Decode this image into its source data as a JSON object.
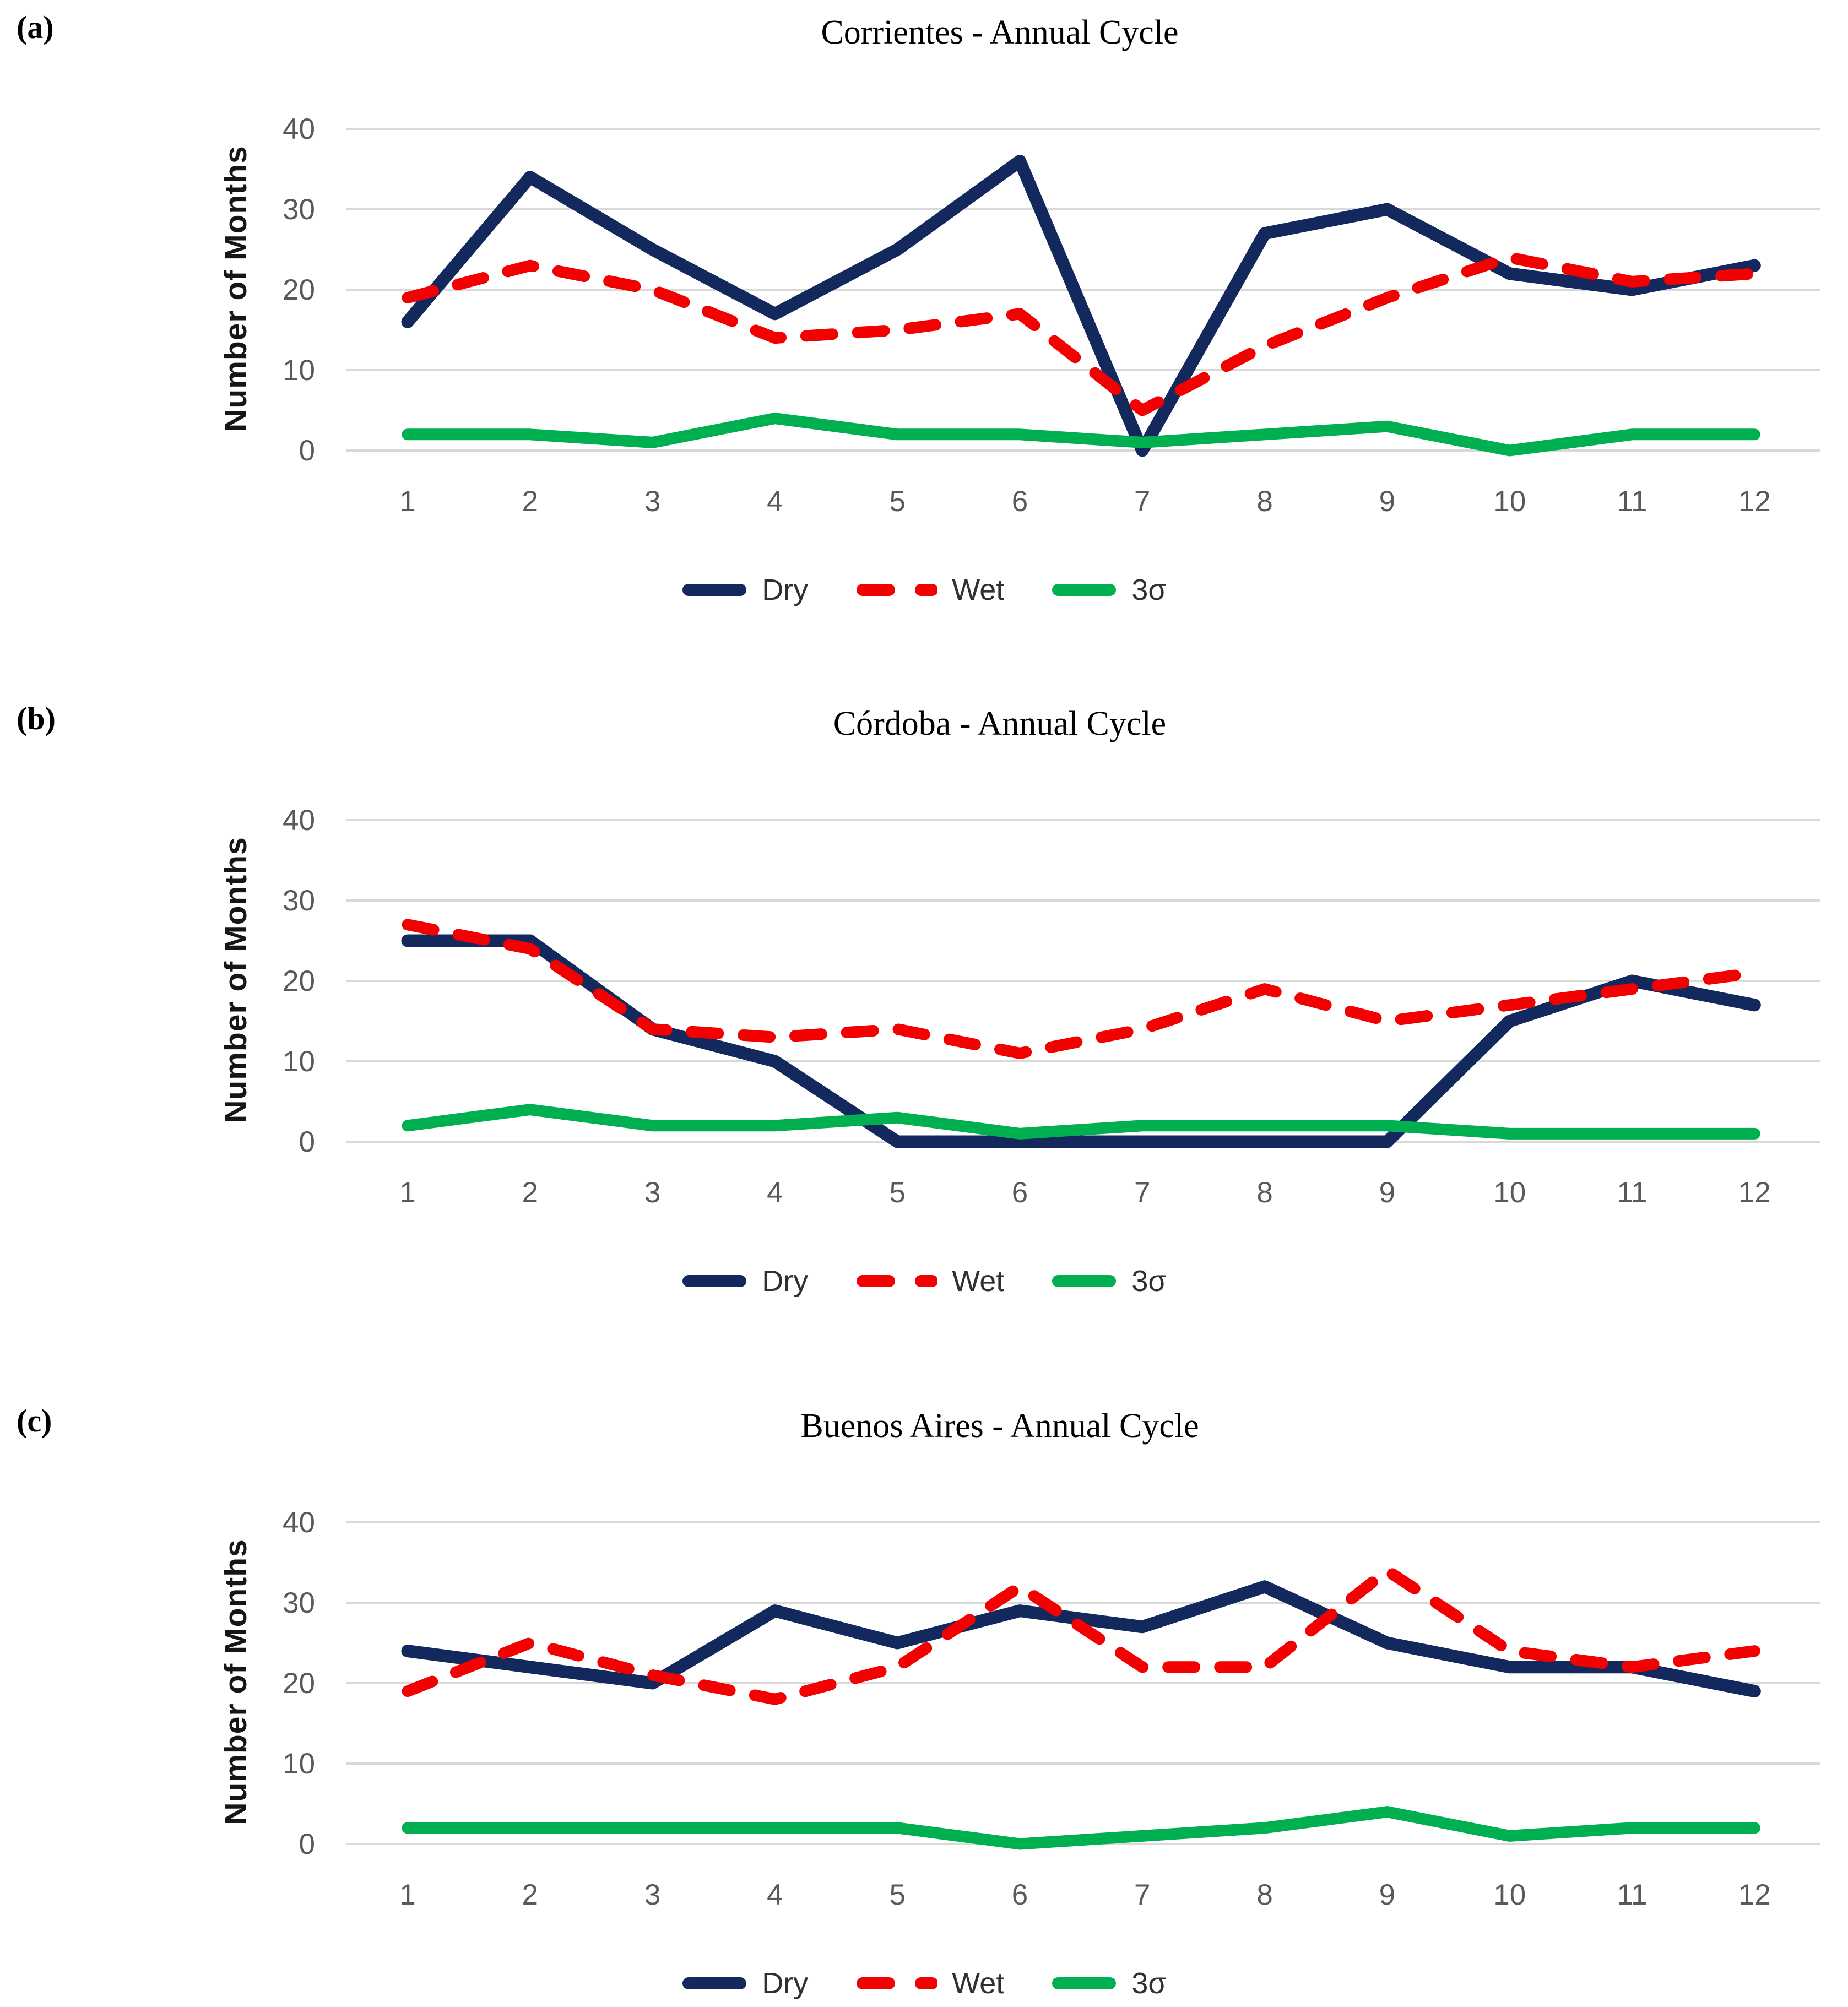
{
  "figure": {
    "ylabel": "Number of Months",
    "accent_colors": {
      "dry": "#13295E",
      "wet": "#F30000",
      "sigma": "#00B050",
      "gridline": "#D9D9D9",
      "tick_text": "#595959"
    }
  },
  "chart_data": [
    {
      "type": "line",
      "panel_label": "(a)",
      "title": "Corrientes - Annual Cycle",
      "xlabel": "",
      "ylabel": "Number of Months",
      "ylim": [
        0,
        40
      ],
      "yticks": [
        0,
        10,
        20,
        30,
        40
      ],
      "categories": [
        1,
        2,
        3,
        4,
        5,
        6,
        7,
        8,
        9,
        10,
        11,
        12
      ],
      "grid": true,
      "legend_position": "bottom",
      "series": [
        {
          "name": "Dry",
          "key": "dry",
          "color": "#13295E",
          "style": "solid",
          "values": [
            16,
            34,
            25,
            17,
            25,
            36,
            0,
            27,
            30,
            22,
            20,
            23
          ]
        },
        {
          "name": "Wet",
          "key": "wet",
          "color": "#F30000",
          "style": "dashed",
          "values": [
            19,
            23,
            20,
            14,
            15,
            17,
            5,
            13,
            19,
            24,
            21,
            22
          ]
        },
        {
          "name": "3σ",
          "key": "sigma",
          "color": "#00B050",
          "style": "solid",
          "values": [
            2,
            2,
            1,
            4,
            2,
            2,
            1,
            2,
            3,
            0,
            2,
            2
          ]
        }
      ]
    },
    {
      "type": "line",
      "panel_label": "(b)",
      "title": "Córdoba - Annual Cycle",
      "xlabel": "",
      "ylabel": "Number of Months",
      "ylim": [
        0,
        40
      ],
      "yticks": [
        0,
        10,
        20,
        30,
        40
      ],
      "categories": [
        1,
        2,
        3,
        4,
        5,
        6,
        7,
        8,
        9,
        10,
        11,
        12
      ],
      "grid": true,
      "legend_position": "bottom",
      "series": [
        {
          "name": "Dry",
          "key": "dry",
          "color": "#13295E",
          "style": "solid",
          "values": [
            25,
            25,
            14,
            10,
            0,
            0,
            0,
            0,
            0,
            15,
            20,
            17
          ]
        },
        {
          "name": "Wet",
          "key": "wet",
          "color": "#F30000",
          "style": "dashed",
          "values": [
            27,
            24,
            14,
            13,
            14,
            11,
            14,
            19,
            15,
            17,
            19,
            21
          ]
        },
        {
          "name": "3σ",
          "key": "sigma",
          "color": "#00B050",
          "style": "solid",
          "values": [
            2,
            4,
            2,
            2,
            3,
            1,
            2,
            2,
            2,
            1,
            1,
            1
          ]
        }
      ]
    },
    {
      "type": "line",
      "panel_label": "(c)",
      "title": "Buenos Aires - Annual Cycle",
      "xlabel": "",
      "ylabel": "Number of Months",
      "ylim": [
        0,
        40
      ],
      "yticks": [
        0,
        10,
        20,
        30,
        40
      ],
      "categories": [
        1,
        2,
        3,
        4,
        5,
        6,
        7,
        8,
        9,
        10,
        11,
        12
      ],
      "grid": true,
      "legend_position": "bottom",
      "series": [
        {
          "name": "Dry",
          "key": "dry",
          "color": "#13295E",
          "style": "solid",
          "values": [
            24,
            22,
            20,
            29,
            25,
            29,
            27,
            32,
            25,
            22,
            22,
            19
          ]
        },
        {
          "name": "Wet",
          "key": "wet",
          "color": "#F30000",
          "style": "dashed",
          "values": [
            19,
            25,
            21,
            18,
            22,
            32,
            22,
            22,
            34,
            24,
            22,
            24
          ]
        },
        {
          "name": "3σ",
          "key": "sigma",
          "color": "#00B050",
          "style": "solid",
          "values": [
            2,
            2,
            2,
            2,
            2,
            0,
            1,
            2,
            4,
            1,
            2,
            2
          ]
        }
      ]
    }
  ]
}
